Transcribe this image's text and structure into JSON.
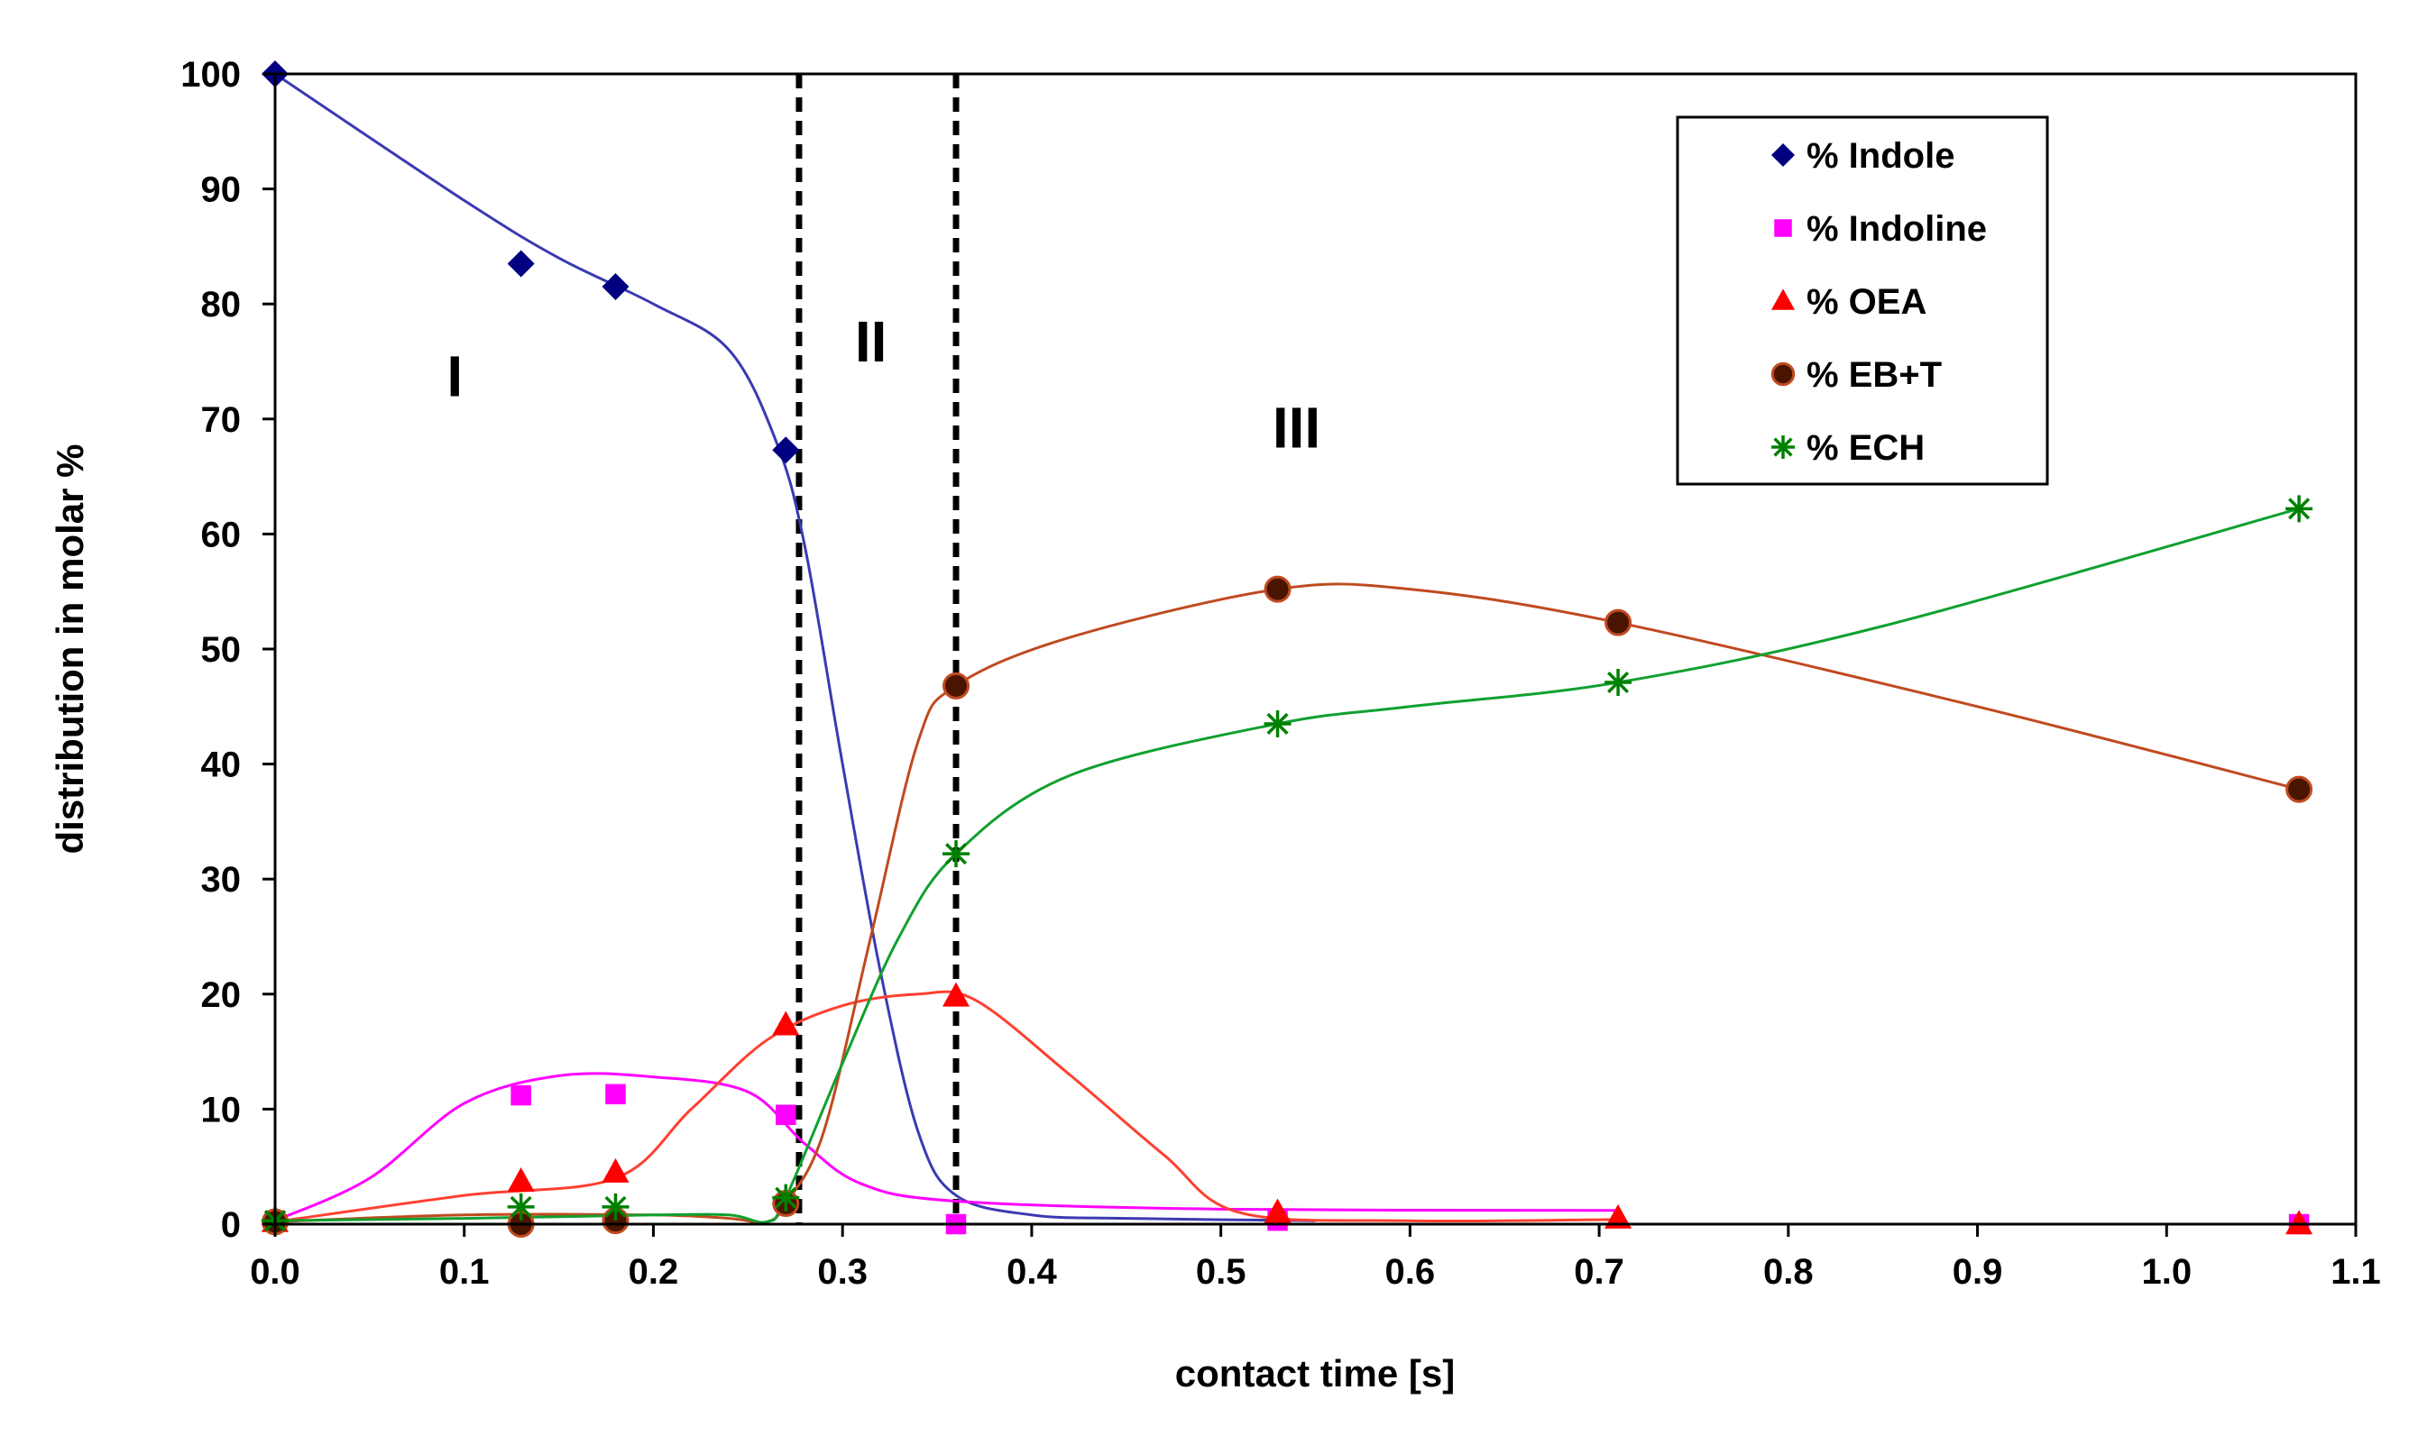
{
  "chart_data": {
    "type": "line",
    "title": "",
    "xlabel": "contact time [s]",
    "ylabel": "distribution in molar %",
    "xlim": [
      0,
      1.1
    ],
    "ylim": [
      0,
      100
    ],
    "x_ticks": [
      0.0,
      0.1,
      0.2,
      0.3,
      0.4,
      0.5,
      0.6,
      0.7,
      0.8,
      0.9,
      1.0,
      1.1
    ],
    "x_tick_labels": [
      "0.0",
      "0.1",
      "0.2",
      "0.3",
      "0.4",
      "0.5",
      "0.6",
      "0.7",
      "0.8",
      "0.9",
      "1.0",
      "1.1"
    ],
    "y_ticks": [
      0,
      10,
      20,
      30,
      40,
      50,
      60,
      70,
      80,
      90,
      100
    ],
    "y_tick_labels": [
      "0",
      "10",
      "20",
      "30",
      "40",
      "50",
      "60",
      "70",
      "80",
      "90",
      "100"
    ],
    "grid": false,
    "legend_position": "top-right",
    "vlines": [
      0.277,
      0.36
    ],
    "regions": [
      {
        "label": "I",
        "x": 0.095,
        "y": 72
      },
      {
        "label": "II",
        "x": 0.315,
        "y": 75
      },
      {
        "label": "III",
        "x": 0.54,
        "y": 67.5
      }
    ],
    "series": [
      {
        "name": "% Indole",
        "marker": "diamond",
        "marker_color": "#000080",
        "line_color": "#3a3ab2",
        "points": [
          [
            0.0,
            100
          ],
          [
            0.13,
            83.5
          ],
          [
            0.18,
            81.5
          ],
          [
            0.27,
            67.3
          ]
        ],
        "curve": [
          [
            0.0,
            100
          ],
          [
            0.1,
            89
          ],
          [
            0.15,
            84
          ],
          [
            0.2,
            80
          ],
          [
            0.24,
            76
          ],
          [
            0.265,
            68
          ],
          [
            0.28,
            59
          ],
          [
            0.3,
            40
          ],
          [
            0.32,
            22
          ],
          [
            0.34,
            8
          ],
          [
            0.36,
            2.5
          ],
          [
            0.4,
            0.8
          ],
          [
            0.45,
            0.5
          ],
          [
            0.55,
            0.3
          ]
        ]
      },
      {
        "name": "% Indoline",
        "marker": "square",
        "marker_color": "#ff00ff",
        "line_color": "#ff00ff",
        "points": [
          [
            0.0,
            0.3
          ],
          [
            0.13,
            11.2
          ],
          [
            0.18,
            11.3
          ],
          [
            0.27,
            9.5
          ],
          [
            0.36,
            0
          ],
          [
            0.53,
            0.3
          ],
          [
            1.07,
            0
          ]
        ],
        "curve": [
          [
            0.0,
            0.3
          ],
          [
            0.05,
            4
          ],
          [
            0.1,
            10.5
          ],
          [
            0.15,
            12.9
          ],
          [
            0.2,
            12.8
          ],
          [
            0.25,
            11.5
          ],
          [
            0.28,
            7
          ],
          [
            0.31,
            3.5
          ],
          [
            0.36,
            2
          ],
          [
            0.5,
            1.3
          ],
          [
            0.71,
            1.2
          ]
        ]
      },
      {
        "name": "% OEA",
        "marker": "triangle",
        "marker_color": "#ff0000",
        "line_color": "#ff4030",
        "points": [
          [
            0.0,
            0.2
          ],
          [
            0.13,
            3.7
          ],
          [
            0.18,
            4.5
          ],
          [
            0.27,
            17.3
          ],
          [
            0.36,
            19.8
          ],
          [
            0.53,
            1
          ],
          [
            0.71,
            0.5
          ],
          [
            1.07,
            0
          ]
        ],
        "curve": [
          [
            0.0,
            0.2
          ],
          [
            0.1,
            2.5
          ],
          [
            0.18,
            4
          ],
          [
            0.22,
            10
          ],
          [
            0.26,
            16
          ],
          [
            0.3,
            19
          ],
          [
            0.34,
            20
          ],
          [
            0.37,
            19.5
          ],
          [
            0.42,
            13
          ],
          [
            0.47,
            6
          ],
          [
            0.51,
            1
          ],
          [
            0.6,
            0.3
          ],
          [
            0.71,
            0.4
          ]
        ]
      },
      {
        "name": "% EB+T",
        "marker": "circle",
        "marker_color": "#4a1500",
        "line_color": "#c04a20",
        "points": [
          [
            0.0,
            0.2
          ],
          [
            0.13,
            0
          ],
          [
            0.18,
            0.3
          ],
          [
            0.27,
            1.8
          ],
          [
            0.36,
            46.8
          ],
          [
            0.53,
            55.2
          ],
          [
            0.71,
            52.3
          ],
          [
            1.07,
            37.8
          ]
        ],
        "curve": [
          [
            0.0,
            0.2
          ],
          [
            0.1,
            0.8
          ],
          [
            0.2,
            0.8
          ],
          [
            0.24,
            0.5
          ],
          [
            0.26,
            0.2
          ],
          [
            0.27,
            1.8
          ],
          [
            0.29,
            8
          ],
          [
            0.315,
            25
          ],
          [
            0.34,
            42
          ],
          [
            0.36,
            46.8
          ],
          [
            0.42,
            51
          ],
          [
            0.53,
            55.2
          ],
          [
            0.6,
            55.2
          ],
          [
            0.71,
            52.3
          ],
          [
            0.9,
            45
          ],
          [
            1.07,
            37.8
          ]
        ]
      },
      {
        "name": "% ECH",
        "marker": "asterisk",
        "marker_color": "#008000",
        "line_color": "#10a030",
        "points": [
          [
            0.0,
            0.3
          ],
          [
            0.13,
            1.5
          ],
          [
            0.18,
            1.5
          ],
          [
            0.27,
            2.3
          ],
          [
            0.36,
            32.2
          ],
          [
            0.53,
            43.5
          ],
          [
            0.71,
            47.1
          ],
          [
            1.07,
            62.2
          ]
        ],
        "curve": [
          [
            0.0,
            0.3
          ],
          [
            0.1,
            0.5
          ],
          [
            0.2,
            0.8
          ],
          [
            0.24,
            0.8
          ],
          [
            0.26,
            0.2
          ],
          [
            0.27,
            2.3
          ],
          [
            0.3,
            14
          ],
          [
            0.33,
            25
          ],
          [
            0.36,
            32.2
          ],
          [
            0.42,
            39
          ],
          [
            0.53,
            43.5
          ],
          [
            0.6,
            45
          ],
          [
            0.71,
            47.1
          ],
          [
            0.85,
            52
          ],
          [
            1.07,
            62.2
          ]
        ]
      }
    ]
  }
}
